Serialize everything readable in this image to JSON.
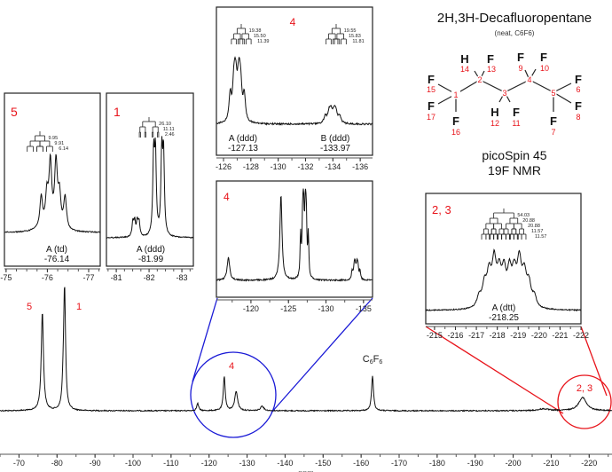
{
  "title": "2H,3H-Decafluoropentane",
  "subtitle": "(neat, C6F6)",
  "instrument": "picoSpin 45",
  "experiment": "19F NMR",
  "colors": {
    "labels": "#e8141b",
    "zoom_4": "#1a1ad6",
    "zoom_23": "#e8141b",
    "trace": "#111111"
  },
  "structure": {
    "carbons": [
      "1",
      "2",
      "3",
      "4",
      "5"
    ],
    "atoms": [
      {
        "el": "H",
        "num": "14"
      },
      {
        "el": "F",
        "num": "13"
      },
      {
        "el": "F",
        "num": "15"
      },
      {
        "el": "F",
        "num": "17"
      },
      {
        "el": "F",
        "num": "16"
      },
      {
        "el": "H",
        "num": "12"
      },
      {
        "el": "F",
        "num": "11"
      },
      {
        "el": "F",
        "num": "9"
      },
      {
        "el": "F",
        "num": "10"
      },
      {
        "el": "F",
        "num": "6"
      },
      {
        "el": "F",
        "num": "8"
      },
      {
        "el": "F",
        "num": "7"
      }
    ]
  },
  "chart_data": {
    "type": "line",
    "xlabel": "ppm",
    "xlim": [
      -65,
      -226
    ],
    "xticks": [
      -70,
      -80,
      -90,
      -100,
      -110,
      -120,
      -130,
      -140,
      -150,
      -160,
      -170,
      -180,
      -190,
      -200,
      -210,
      -220
    ],
    "peak_labels": [
      "5",
      "1",
      "4",
      "C6F6",
      "2, 3"
    ],
    "peaks": [
      {
        "shift": -76.14,
        "rel_intensity": 0.81,
        "assign": "5"
      },
      {
        "shift": -81.99,
        "rel_intensity": 1.0,
        "assign": "1"
      },
      {
        "shift": -117.0,
        "rel_intensity": 0.06
      },
      {
        "shift": -124.0,
        "rel_intensity": 0.28
      },
      {
        "shift": -127.13,
        "rel_intensity": 0.16,
        "assign": "4"
      },
      {
        "shift": -133.97,
        "rel_intensity": 0.04,
        "assign": "4"
      },
      {
        "shift": -163.0,
        "rel_intensity": 0.29,
        "assign": "C6F6"
      },
      {
        "shift": -208.0,
        "rel_intensity": 0.015
      },
      {
        "shift": -218.25,
        "rel_intensity": 0.11,
        "assign": "2, 3"
      }
    ],
    "insets": [
      {
        "id": "inset5",
        "label": "5",
        "xlim": [
          -74.96,
          -77.28
        ],
        "xticks": [
          -75,
          -76,
          -77
        ],
        "multiplets": [
          {
            "name": "A",
            "mult": "A (td)",
            "shift": "-76.14",
            "J": [
              "9.95",
              "9.91",
              "6.14"
            ]
          }
        ]
      },
      {
        "id": "inset1",
        "label": "1",
        "xlim": [
          -80.7,
          -83.35
        ],
        "xticks": [
          -81,
          -82,
          -83
        ],
        "multiplets": [
          {
            "name": "A",
            "mult": "A (ddd)",
            "shift": "-81.99",
            "J": [
              "26.10",
              "11.11",
              "2.46"
            ]
          }
        ]
      },
      {
        "id": "inset4a",
        "label": "4",
        "xlim": [
          -125.48,
          -136.9
        ],
        "xticks": [
          -126,
          -128,
          -130,
          -132,
          -134,
          -136
        ],
        "multiplets": [
          {
            "name": "A",
            "mult": "A (ddd)",
            "shift": "-127.13",
            "J": [
              "19.38",
              "15.50",
              "11.39"
            ]
          },
          {
            "name": "B",
            "mult": "B (ddd)",
            "shift": "-133.97",
            "J": [
              "19.55",
              "15.83",
              "11.81"
            ]
          }
        ]
      },
      {
        "id": "inset4b",
        "label": "4",
        "xlim": [
          -115.4,
          -136.2
        ],
        "xticks": [
          -120,
          -125,
          -130,
          -135
        ],
        "multiplets": []
      },
      {
        "id": "inset23",
        "label": "2, 3",
        "xlim": [
          -214.58,
          -222.0
        ],
        "xticks": [
          -215,
          -216,
          -217,
          -218,
          -219,
          -220,
          -221,
          -222
        ],
        "multiplets": [
          {
            "name": "A",
            "mult": "A (dtt)",
            "shift": "-218.25",
            "J": [
              "54.03",
              "20.88",
              "20.88",
              "11.57",
              "11.57"
            ]
          }
        ]
      }
    ]
  }
}
